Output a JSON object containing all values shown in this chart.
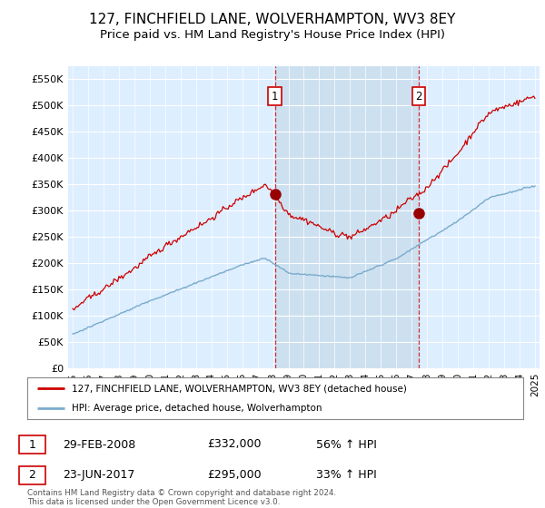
{
  "title": "127, FINCHFIELD LANE, WOLVERHAMPTON, WV3 8EY",
  "subtitle": "Price paid vs. HM Land Registry's House Price Index (HPI)",
  "title_fontsize": 11,
  "subtitle_fontsize": 9.5,
  "ylabel_ticks": [
    "£0",
    "£50K",
    "£100K",
    "£150K",
    "£200K",
    "£250K",
    "£300K",
    "£350K",
    "£400K",
    "£450K",
    "£500K",
    "£550K"
  ],
  "ytick_vals": [
    0,
    50000,
    100000,
    150000,
    200000,
    250000,
    300000,
    350000,
    400000,
    450000,
    500000,
    550000
  ],
  "ylim": [
    0,
    575000
  ],
  "xlim_start": 1994.7,
  "xlim_end": 2025.3,
  "sale1_date": 2008.12,
  "sale1_price": 332000,
  "sale1_label": "1",
  "sale1_text": "29-FEB-2008",
  "sale1_amount": "£332,000",
  "sale1_pct": "56% ↑ HPI",
  "sale2_date": 2017.47,
  "sale2_price": 295000,
  "sale2_label": "2",
  "sale2_text": "23-JUN-2017",
  "sale2_amount": "£295,000",
  "sale2_pct": "33% ↑ HPI",
  "property_line_color": "#cc0000",
  "hpi_line_color": "#7aabcc",
  "sale_dot_color": "#990000",
  "shaded_region_color": "#cce0f0",
  "plot_bg_color": "#ddeeff",
  "legend_line1": "127, FINCHFIELD LANE, WOLVERHAMPTON, WV3 8EY (detached house)",
  "legend_line2": "HPI: Average price, detached house, Wolverhampton",
  "footnote": "Contains HM Land Registry data © Crown copyright and database right 2024.\nThis data is licensed under the Open Government Licence v3.0.",
  "xtick_years": [
    1995,
    1996,
    1997,
    1998,
    1999,
    2000,
    2001,
    2002,
    2003,
    2004,
    2005,
    2006,
    2007,
    2008,
    2009,
    2010,
    2011,
    2012,
    2013,
    2014,
    2015,
    2016,
    2017,
    2018,
    2019,
    2020,
    2021,
    2022,
    2023,
    2024,
    2025
  ]
}
